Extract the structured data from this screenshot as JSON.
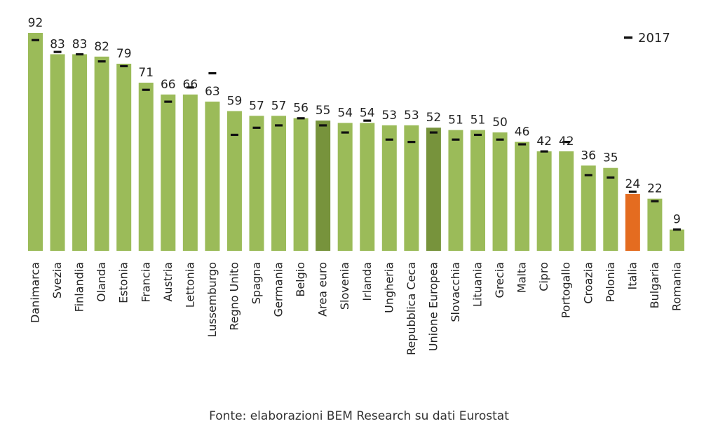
{
  "chart_data": {
    "type": "bar",
    "categories": [
      "Danimarca",
      "Svezia",
      "Finlandia",
      "Olanda",
      "Estonia",
      "Francia",
      "Austria",
      "Lettonia",
      "Lussemburgo",
      "Regno Unito",
      "Spagna",
      "Germania",
      "Belgio",
      "Area euro",
      "Slovenia",
      "Irlanda",
      "Ungheria",
      "Repubblica Ceca",
      "Unione Europea",
      "Slovacchia",
      "Lituania",
      "Grecia",
      "Malta",
      "Cipro",
      "Portogallo",
      "Croazia",
      "Polonia",
      "Italia",
      "Bulgaria",
      "Romania"
    ],
    "series": [
      {
        "values": [
          92,
          83,
          83,
          82,
          79,
          71,
          66,
          66,
          63,
          59,
          57,
          57,
          56,
          55,
          54,
          54,
          53,
          53,
          52,
          51,
          51,
          50,
          46,
          42,
          42,
          36,
          35,
          24,
          22,
          9
        ]
      },
      {
        "name": "2017",
        "values": [
          89,
          84,
          83,
          80,
          78,
          68,
          63,
          69,
          75,
          49,
          52,
          53,
          56,
          53,
          50,
          55,
          47,
          46,
          50,
          47,
          49,
          47,
          45,
          42,
          46,
          32,
          31,
          25,
          21,
          9
        ]
      }
    ],
    "value_labels": [
      "92",
      "83",
      "83",
      "82",
      "79",
      "71",
      "66",
      "66",
      "63",
      "59",
      "57",
      "57",
      "56",
      "55",
      "54",
      "54",
      "53",
      "53",
      "52",
      "51",
      "51",
      "50",
      "46",
      "42",
      "42",
      "36",
      "35",
      "24",
      "22",
      "9"
    ],
    "ylim": [
      0,
      92
    ],
    "legend_position": "top-right",
    "grid": false,
    "colors": {
      "default": "#9bbb59",
      "aggregate": "#77933c",
      "highlight": "#e46c20",
      "marker": "#111111"
    },
    "aggregate_categories": [
      "Area euro",
      "Unione Europea"
    ],
    "highlight_categories": [
      "Italia"
    ]
  },
  "legend": {
    "label": "2017"
  },
  "source": "Fonte: elaborazioni BEM Research su dati Eurostat"
}
